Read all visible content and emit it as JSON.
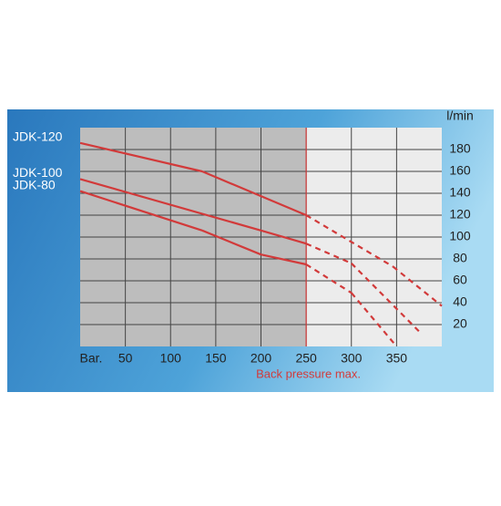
{
  "chart_data": {
    "type": "line",
    "y_label": "l/min",
    "x_label": "Bar.",
    "max_label": "Back pressure max.",
    "max_line": 250,
    "xlim": [
      0,
      400
    ],
    "xticks": [
      50,
      100,
      150,
      200,
      250,
      300,
      350
    ],
    "ylim": [
      0,
      200
    ],
    "yticks": [
      20,
      40,
      60,
      80,
      100,
      120,
      140,
      160,
      180
    ],
    "grid": true,
    "dashed_beyond_max": true,
    "series": [
      {
        "name": "JDK-120",
        "color": "#d23a3a",
        "x": [
          0,
          135,
          250,
          346,
          400
        ],
        "values": [
          186,
          160,
          120,
          73,
          37
        ]
      },
      {
        "name": "JDK-100",
        "color": "#d23a3a",
        "x": [
          0,
          200,
          250,
          300,
          377
        ],
        "values": [
          153,
          106,
          94,
          76,
          12
        ]
      },
      {
        "name": "JDK-80",
        "color": "#d23a3a",
        "x": [
          0,
          135,
          200,
          250,
          300,
          348
        ],
        "values": [
          142,
          106,
          84,
          75,
          49,
          2
        ]
      }
    ]
  }
}
